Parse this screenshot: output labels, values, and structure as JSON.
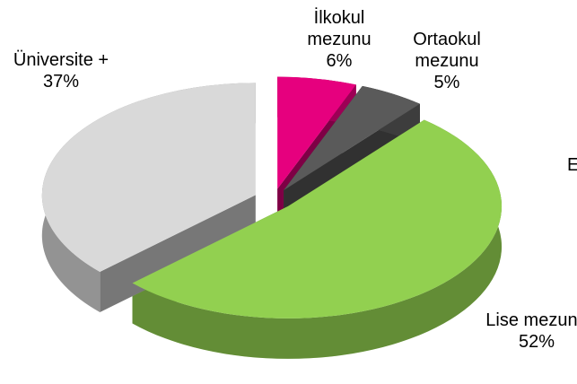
{
  "chart_data": {
    "type": "pie3d",
    "categories": [
      "İlkokul mezunu",
      "Ortaokul mezunu",
      "Lise mezunu",
      "Üniversite +"
    ],
    "values": [
      6,
      5,
      52,
      37
    ],
    "value_labels": [
      "6%",
      "5%",
      "52%",
      "37%"
    ],
    "colors": [
      "#e6007e",
      "#5a5a5a",
      "#92d050",
      "#d9d9d9"
    ],
    "annotations": [
      "E"
    ]
  }
}
